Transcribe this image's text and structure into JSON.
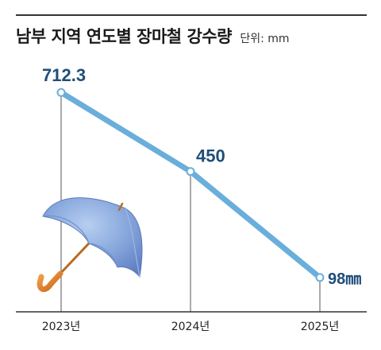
{
  "header": {
    "title": "남부 지역 연도별 장마철 강수량",
    "unit": "단위: mm"
  },
  "colors": {
    "line": "#6aaedb",
    "value_text": "#1f4e79",
    "axis": "#333333",
    "umbrella_canopy": "#7a9fd6",
    "umbrella_handle": "#d9781e"
  },
  "icons": [
    "umbrella-icon"
  ],
  "chart_data": {
    "type": "line",
    "title": "남부 지역 연도별 장마철 강수량",
    "unit": "단위: mm",
    "categories": [
      "2023년",
      "2024년",
      "2025년"
    ],
    "series": [
      {
        "values": [
          712.3,
          450,
          98
        ],
        "labels": [
          "712.3",
          "450",
          "98㎜"
        ]
      }
    ],
    "ylim": [
      0,
      800
    ],
    "grid": false,
    "legend": "none"
  }
}
